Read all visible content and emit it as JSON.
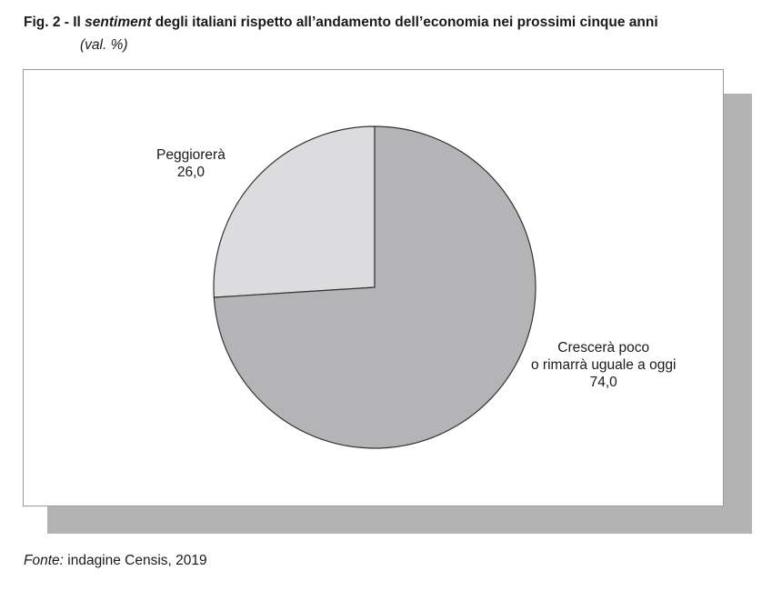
{
  "header": {
    "title_prefix": "Fig. 2 - Il ",
    "title_emph": "sentiment",
    "title_rest": " degli italiani rispetto all’andamento dell’economia nei prossimi cinque anni",
    "subtitle": "(val. %)"
  },
  "footer": {
    "source_label": "Fonte:",
    "source_text": " indagine Censis, 2019"
  },
  "colors": {
    "slice_large": "#b4b4b6",
    "slice_small": "#dcdcde",
    "shadow": "#b3b3b3",
    "stroke": "#333333"
  },
  "chart_data": {
    "type": "pie",
    "unit": "val. %",
    "slices": [
      {
        "label_lines": [
          "Peggiorerà"
        ],
        "value": 26.0,
        "value_text": "26,0"
      },
      {
        "label_lines": [
          "Crescerà poco",
          "o rimarrà uguale a oggi"
        ],
        "value": 74.0,
        "value_text": "74,0"
      }
    ]
  }
}
